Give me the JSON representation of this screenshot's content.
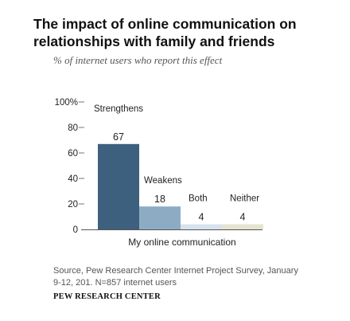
{
  "header": {
    "title": "The impact of online communication on relationships with family and friends",
    "subtitle": "% of internet users who report this effect"
  },
  "footer": {
    "source": "Source, Pew Research Center Internet Project Survey, January 9-12, 201. N=857 internet users",
    "org": "PEW RESEARCH CENTER"
  },
  "chart_data": {
    "type": "bar",
    "title": "",
    "xlabel": "",
    "ylabel": "",
    "ylim": [
      0,
      100
    ],
    "yticks": [
      0,
      20,
      40,
      60,
      80,
      100
    ],
    "ytick_labels": [
      "0",
      "20",
      "40",
      "60",
      "80",
      "100%"
    ],
    "grid": false,
    "legend": "none",
    "group_label": "My online communication",
    "categories": [
      "Strengthens",
      "Weakens",
      "Both",
      "Neither"
    ],
    "values": [
      67,
      18,
      4,
      4
    ],
    "value_labels": [
      "67",
      "18",
      "4",
      "4"
    ],
    "colors": [
      "#3d607f",
      "#8eabc4",
      "#d6e2ec",
      "#e6e3cf"
    ]
  }
}
